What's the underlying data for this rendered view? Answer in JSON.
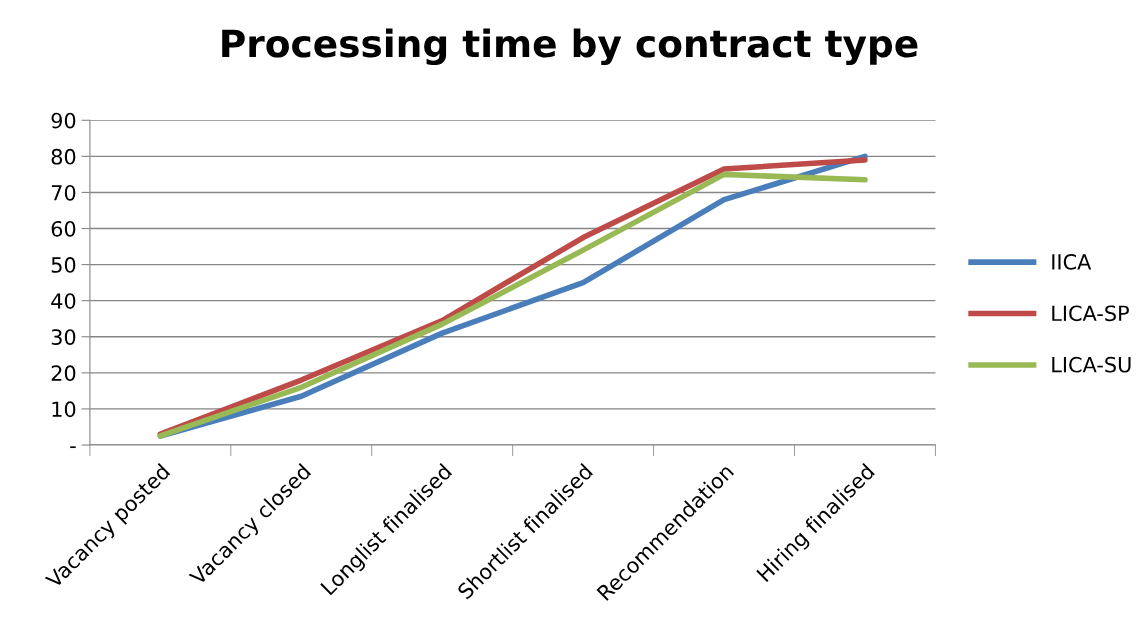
{
  "chart_data": {
    "type": "line",
    "title": "Processing time by contract type",
    "categories": [
      "Vacancy posted",
      "Vacancy closed",
      "Longlist finalised",
      "Shortlist finalised",
      "Recommendation",
      "Hiring finalised"
    ],
    "series": [
      {
        "name": "IICA",
        "color": "#4a7ebb",
        "values": [
          2.5,
          13.5,
          31,
          45,
          68,
          80
        ]
      },
      {
        "name": "LICA-SP",
        "color": "#be4b48",
        "values": [
          3,
          18,
          34.5,
          57.5,
          76.5,
          79
        ]
      },
      {
        "name": "LICA-SU",
        "color": "#98b954",
        "values": [
          2.5,
          16,
          33.5,
          54,
          75,
          73.5
        ]
      }
    ],
    "ylim": [
      0,
      90
    ],
    "yticks": [
      {
        "value": 0,
        "label": "-"
      },
      10,
      20,
      30,
      40,
      50,
      60,
      70,
      80,
      90
    ],
    "grid": "y",
    "legend": "right",
    "marker": "none",
    "line_style": "solid"
  }
}
